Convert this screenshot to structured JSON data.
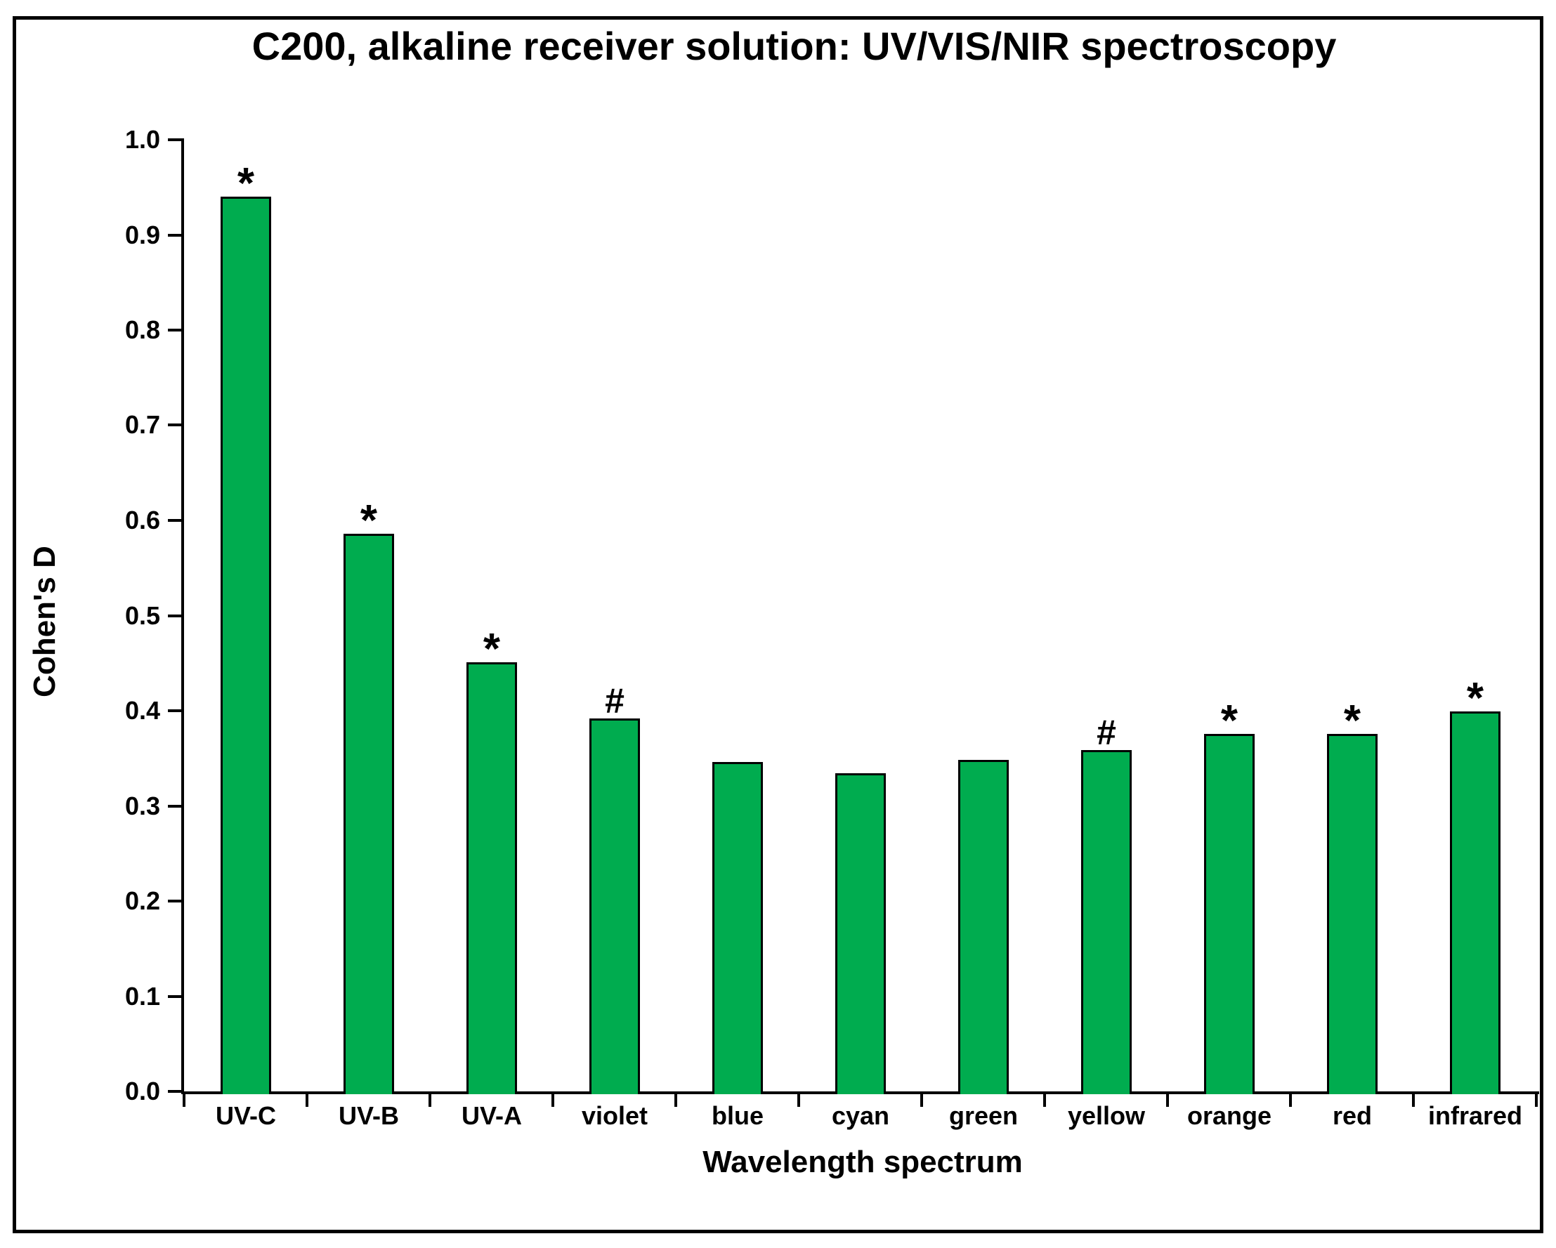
{
  "figure": {
    "background_color": "#ffffff",
    "frame_color": "#000000"
  },
  "chart_data": {
    "type": "bar",
    "title": "C200, alkaline receiver solution: UV/VIS/NIR spectroscopy",
    "xlabel": "Wavelength spectrum",
    "ylabel": "Cohen's D",
    "categories": [
      "UV-C",
      "UV-B",
      "UV-A",
      "violet",
      "blue",
      "cyan",
      "green",
      "yellow",
      "orange",
      "red",
      "infrared"
    ],
    "values": [
      0.94,
      0.586,
      0.451,
      0.392,
      0.346,
      0.334,
      0.348,
      0.359,
      0.376,
      0.376,
      0.399
    ],
    "significance_markers": [
      "*",
      "*",
      "*",
      "#",
      "",
      "",
      "",
      "#",
      "*",
      "*",
      "*"
    ],
    "ylim": [
      0.0,
      1.0
    ],
    "ytick_step": 0.1,
    "ytick_labels": [
      "0.0",
      "0.1",
      "0.2",
      "0.3",
      "0.4",
      "0.5",
      "0.6",
      "0.7",
      "0.8",
      "0.9",
      "1.0"
    ],
    "grid": false,
    "legend": "none",
    "bar_fill_color": "#00AC4F",
    "bar_edge_color": "#000000",
    "axis_color": "#000000",
    "text_color": "#000000"
  }
}
